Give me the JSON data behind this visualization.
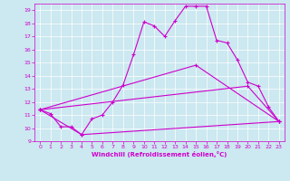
{
  "xlabel": "Windchill (Refroidissement éolien,°C)",
  "xlim": [
    -0.5,
    23.5
  ],
  "ylim": [
    9,
    19.5
  ],
  "xticks": [
    0,
    1,
    2,
    3,
    4,
    5,
    6,
    7,
    8,
    9,
    10,
    11,
    12,
    13,
    14,
    15,
    16,
    17,
    18,
    19,
    20,
    21,
    22,
    23
  ],
  "yticks": [
    9,
    10,
    11,
    12,
    13,
    14,
    15,
    16,
    17,
    18,
    19
  ],
  "bg_color": "#cce8f0",
  "line_color": "#cc00cc",
  "grid_color": "#ffffff",
  "line1_x": [
    0,
    1,
    2,
    3,
    4,
    5,
    6,
    7,
    8,
    9,
    10,
    11,
    12,
    13,
    14,
    15,
    16,
    17,
    18,
    19,
    20,
    21,
    22,
    23
  ],
  "line1_y": [
    11.4,
    11.1,
    10.1,
    10.1,
    9.5,
    10.7,
    11.0,
    12.0,
    13.3,
    15.6,
    18.1,
    17.8,
    17.0,
    18.2,
    19.3,
    19.3,
    19.3,
    16.7,
    16.5,
    15.2,
    13.5,
    13.2,
    11.6,
    10.5
  ],
  "line2_x": [
    0,
    4,
    23
  ],
  "line2_y": [
    11.4,
    9.5,
    10.5
  ],
  "line3_x": [
    0,
    15,
    23
  ],
  "line3_y": [
    11.4,
    14.8,
    10.5
  ],
  "line4_x": [
    0,
    20,
    23
  ],
  "line4_y": [
    11.4,
    13.2,
    10.5
  ]
}
